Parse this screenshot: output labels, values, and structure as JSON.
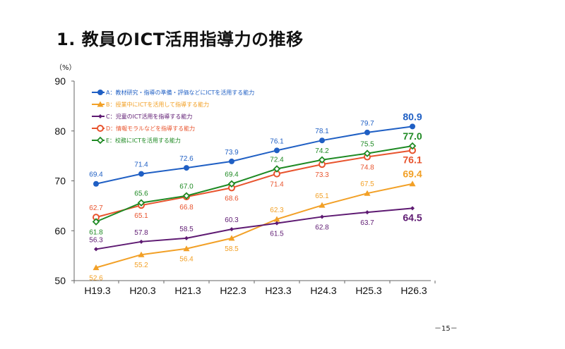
{
  "page": {
    "title": "1. 教員のICT活用指導力の推移",
    "page_number": "－15－"
  },
  "chart_data": {
    "type": "line",
    "title": "1. 教員のICT活用指導力の推移",
    "xlabel": "",
    "ylabel": "（%）",
    "categories": [
      "H19.3",
      "H20.3",
      "H21.3",
      "H22.3",
      "H23.3",
      "H24.3",
      "H25.3",
      "H26.3"
    ],
    "ylim": [
      50,
      90
    ],
    "yticks": [
      50,
      60,
      70,
      80,
      90
    ],
    "grid": false,
    "legend_position": "top-left",
    "series": [
      {
        "name": "A：教材研究・指導の準備・評価などにICTを活用する能力",
        "key": "A",
        "color": "#1f5fc4",
        "marker": "circle-filled",
        "values": [
          69.4,
          71.4,
          72.6,
          73.9,
          76.1,
          78.1,
          79.7,
          80.9
        ],
        "label_pos": [
          "above",
          "above",
          "above",
          "above",
          "above",
          "above",
          "above",
          "above"
        ]
      },
      {
        "name": "B：授業中にICTを活用して指導する能力",
        "key": "B",
        "color": "#f2a026",
        "marker": "triangle",
        "values": [
          52.6,
          55.2,
          56.4,
          58.5,
          62.3,
          65.1,
          67.5,
          69.4
        ],
        "label_pos": [
          "below",
          "below",
          "below",
          "below",
          "above",
          "above",
          "above",
          "above"
        ]
      },
      {
        "name": "C：児童のICT活用を指導する能力",
        "key": "C",
        "color": "#5e1a72",
        "marker": "diamond-small",
        "values": [
          56.3,
          57.8,
          58.5,
          60.3,
          61.5,
          62.8,
          63.7,
          64.5
        ],
        "label_pos": [
          "above",
          "above",
          "above",
          "above",
          "below",
          "below",
          "below",
          "below"
        ]
      },
      {
        "name": "D：情報モラルなどを指導する能力",
        "key": "D",
        "color": "#e8542e",
        "marker": "circle-open",
        "values": [
          62.7,
          65.1,
          66.8,
          68.6,
          71.4,
          73.3,
          74.8,
          76.1
        ],
        "label_pos": [
          "above",
          "below",
          "below",
          "below",
          "below",
          "below",
          "below",
          "below"
        ]
      },
      {
        "name": "E：校務にICTを活用する能力",
        "key": "E",
        "color": "#1f8a24",
        "marker": "diamond-open",
        "values": [
          61.8,
          65.6,
          67.0,
          69.4,
          72.4,
          74.2,
          75.5,
          77.0
        ],
        "label_pos": [
          "below",
          "above",
          "above",
          "above",
          "above",
          "above",
          "above",
          "above"
        ]
      }
    ]
  }
}
